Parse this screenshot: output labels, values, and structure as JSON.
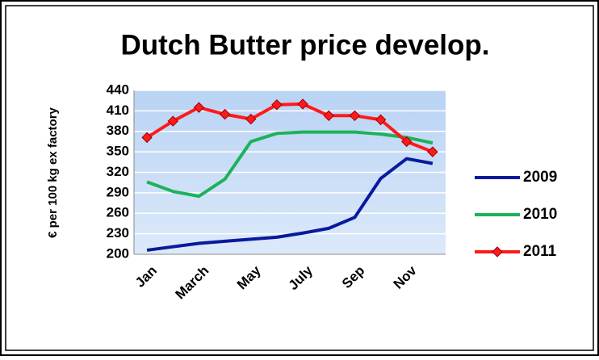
{
  "chart_data": {
    "type": "line",
    "title": "Dutch Butter price develop.",
    "y_label": "€ per 100 kg ex factory",
    "categories": [
      "Jan",
      null,
      "March",
      null,
      "May",
      null,
      "July",
      null,
      "Sep",
      null,
      "Nov",
      null
    ],
    "series": [
      {
        "name": "2009",
        "color": "#0a1a9c",
        "marker": false,
        "values": [
          206,
          211,
          216,
          219,
          222,
          225,
          231,
          238,
          254,
          311,
          340,
          333
        ]
      },
      {
        "name": "2010",
        "color": "#1db25a",
        "marker": false,
        "values": [
          306,
          292,
          285,
          310,
          365,
          377,
          379,
          379,
          379,
          376,
          371,
          363
        ]
      },
      {
        "name": "2011",
        "color": "#ff1a1a",
        "marker": true,
        "values": [
          371,
          395,
          415,
          405,
          398,
          419,
          420,
          403,
          403,
          397,
          365,
          350
        ]
      }
    ],
    "ylim": [
      200,
      440
    ],
    "yticks": [
      200,
      230,
      260,
      290,
      320,
      350,
      380,
      410,
      440
    ],
    "grid": true,
    "legend": "right"
  }
}
